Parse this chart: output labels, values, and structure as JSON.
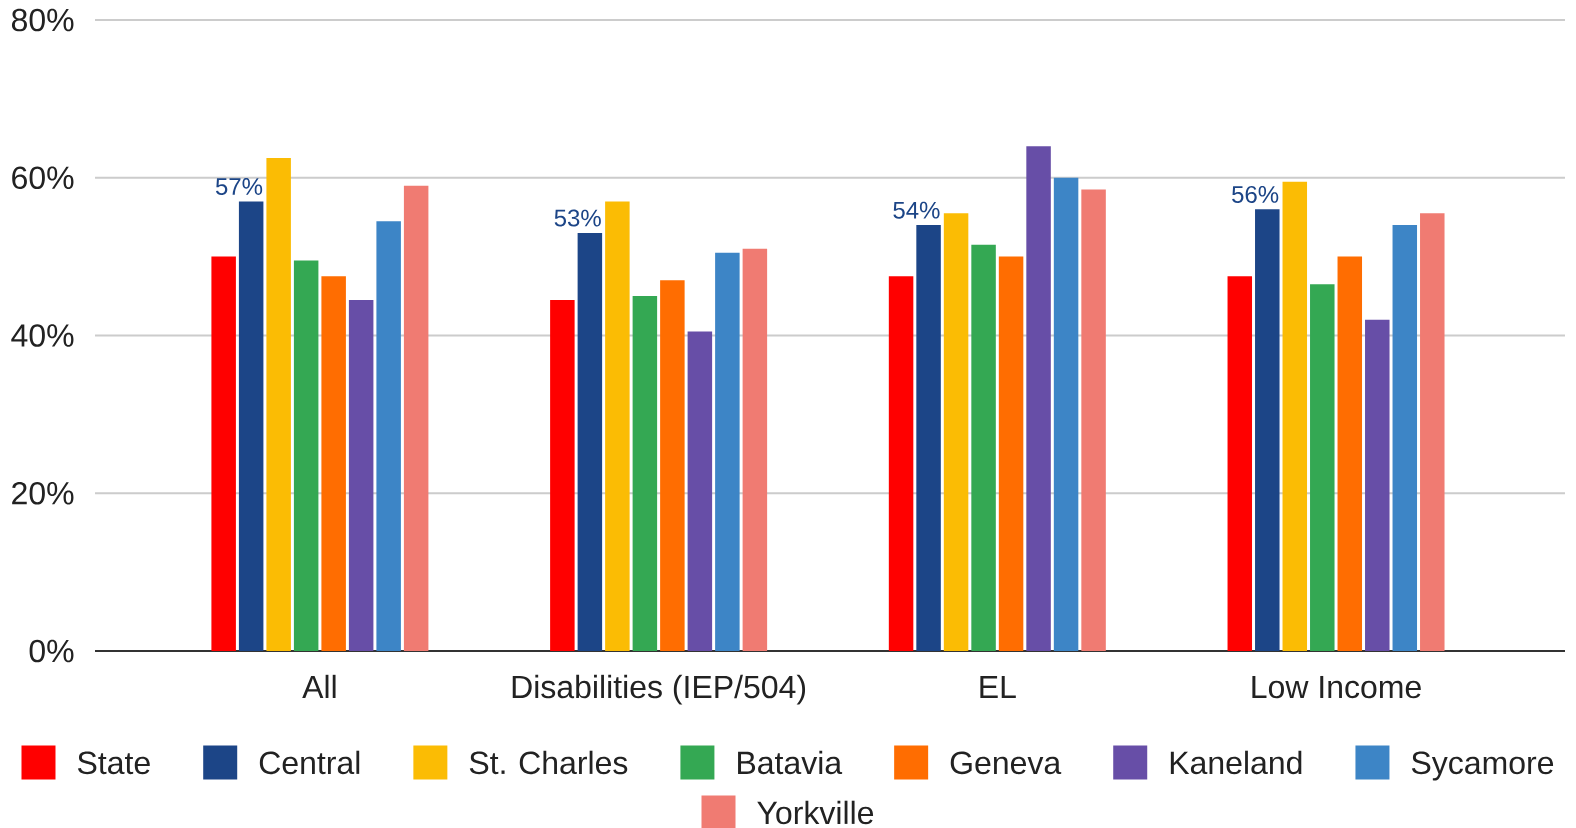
{
  "chart_data": {
    "type": "bar",
    "categories": [
      "All",
      "Disabilities (IEP/504)",
      "EL",
      "Low Income"
    ],
    "series": [
      {
        "name": "State",
        "color": "#ff0000",
        "values": [
          50,
          44.5,
          47.5,
          47.5
        ]
      },
      {
        "name": "Central",
        "color": "#1c4587",
        "values": [
          57,
          53,
          54,
          56
        ],
        "value_labels": [
          "57%",
          "53%",
          "54%",
          "56%"
        ]
      },
      {
        "name": "St. Charles",
        "color": "#fbbc04",
        "values": [
          62.5,
          57,
          55.5,
          59.5
        ]
      },
      {
        "name": "Batavia",
        "color": "#34a853",
        "values": [
          49.5,
          45,
          51.5,
          46.5
        ]
      },
      {
        "name": "Geneva",
        "color": "#ff6d01",
        "values": [
          47.5,
          47,
          50,
          50
        ]
      },
      {
        "name": "Kaneland",
        "color": "#674ea7",
        "values": [
          44.5,
          40.5,
          64,
          42
        ]
      },
      {
        "name": "Sycamore",
        "color": "#3d85c6",
        "values": [
          54.5,
          50.5,
          60,
          54
        ]
      },
      {
        "name": "Yorkville",
        "color": "#f07b72",
        "values": [
          59,
          51,
          58.5,
          55.5
        ]
      }
    ],
    "ylim": [
      0,
      80
    ],
    "yticks": [
      {
        "value": 0,
        "label": "0%"
      },
      {
        "value": 20,
        "label": "20%"
      },
      {
        "value": 40,
        "label": "40%"
      },
      {
        "value": 60,
        "label": "60%"
      },
      {
        "value": 80,
        "label": "80%"
      }
    ],
    "grid": "y",
    "legend": "bottom"
  }
}
